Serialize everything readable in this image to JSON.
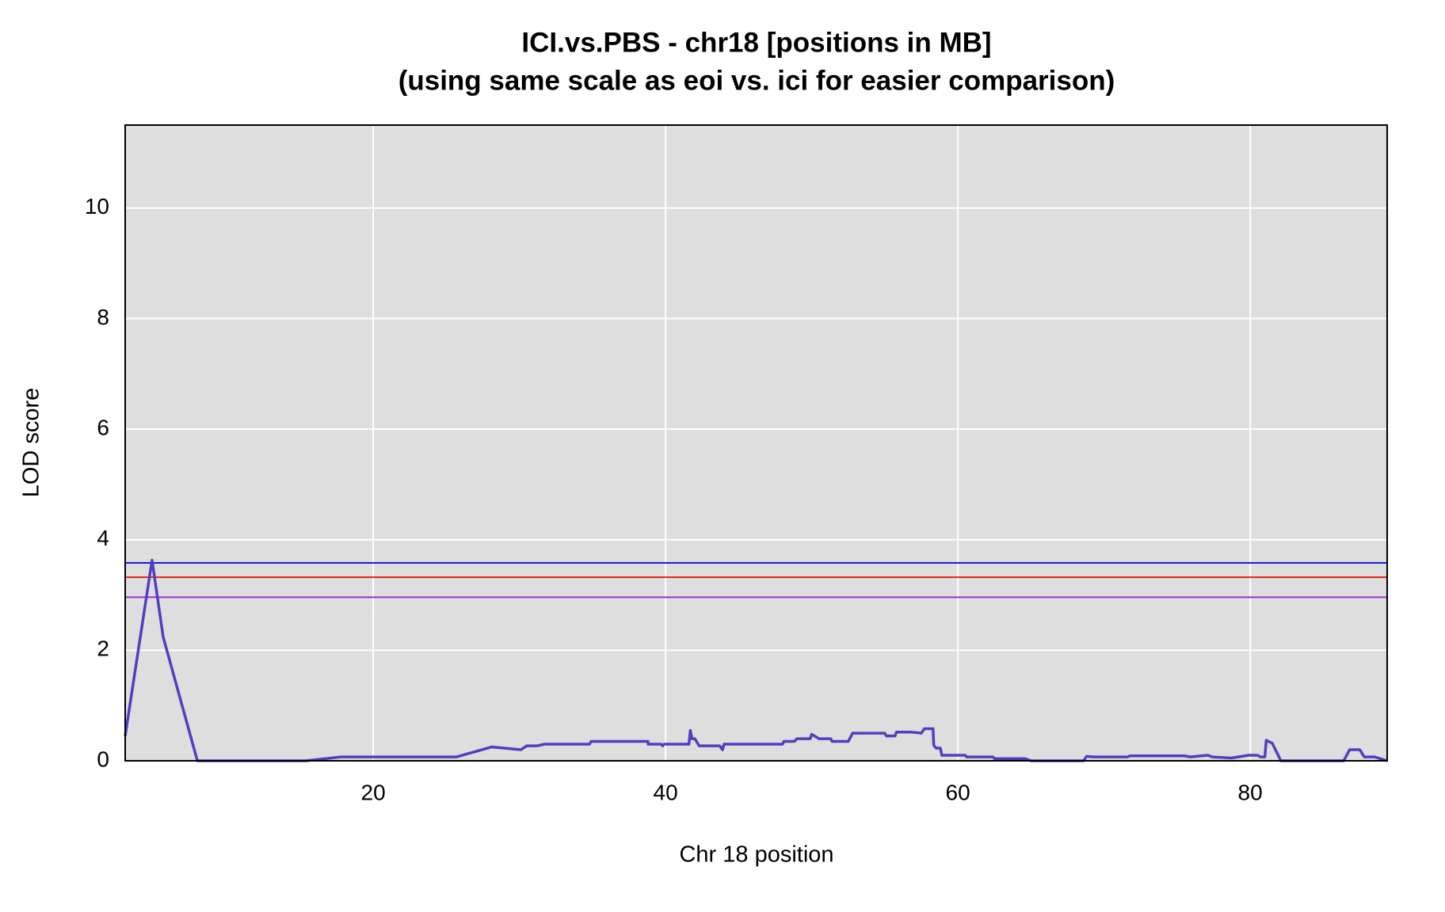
{
  "chart_data": {
    "type": "line",
    "title": [
      "ICI.vs.PBS - chr18 [positions in MB]",
      "(using same scale as eoi vs. ici for easier comparison)"
    ],
    "x_label": "Chr 18 position",
    "y_label": "LOD score",
    "xlim": [
      3.03,
      89.37
    ],
    "ylim": [
      0,
      11.5
    ],
    "xticks": [
      20,
      40,
      60,
      80
    ],
    "yticks": [
      0,
      2,
      4,
      6,
      8,
      10
    ],
    "grid": true,
    "background": "#dedede",
    "x": [
      3.03,
      4.87,
      5.63,
      7.97,
      15.4,
      17.8,
      25.7,
      28.1,
      30.1,
      30.5,
      31.2,
      31.7,
      34.8,
      34.9,
      38.8,
      38.8,
      39.7,
      39.8,
      39.9,
      41.6,
      41.7,
      41.8,
      42.0,
      42.3,
      43.7,
      43.9,
      44.0,
      48.0,
      48.1,
      48.8,
      49.0,
      49.9,
      50.0,
      50.5,
      51.3,
      51.4,
      52.5,
      52.8,
      55.0,
      55.1,
      55.7,
      55.8,
      56.8,
      57.5,
      57.7,
      58.3,
      58.35,
      58.5,
      58.8,
      58.9,
      60.5,
      60.6,
      62.4,
      62.5,
      64.6,
      65.0,
      68.6,
      68.8,
      69.3,
      71.6,
      71.8,
      75.5,
      75.9,
      77.1,
      77.4,
      78.7,
      79.9,
      80.5,
      80.7,
      81.0,
      81.1,
      81.5,
      82.1,
      86.4,
      86.8,
      87.5,
      87.8,
      88.5,
      89.37
    ],
    "series": [
      {
        "color": "#5040c0",
        "values": [
          0.45,
          3.63,
          2.24,
          0,
          0,
          0.07,
          0.07,
          0.25,
          0.2,
          0.27,
          0.27,
          0.3,
          0.3,
          0.35,
          0.35,
          0.3,
          0.3,
          0.27,
          0.3,
          0.3,
          0.55,
          0.4,
          0.4,
          0.27,
          0.27,
          0.2,
          0.3,
          0.3,
          0.35,
          0.35,
          0.4,
          0.4,
          0.48,
          0.4,
          0.4,
          0.35,
          0.35,
          0.5,
          0.5,
          0.45,
          0.45,
          0.52,
          0.52,
          0.5,
          0.58,
          0.58,
          0.28,
          0.23,
          0.23,
          0.1,
          0.1,
          0.07,
          0.07,
          0.04,
          0.04,
          0,
          0,
          0.08,
          0.07,
          0.07,
          0.09,
          0.09,
          0.07,
          0.1,
          0.07,
          0.05,
          0.1,
          0.1,
          0.07,
          0.07,
          0.37,
          0.32,
          0,
          0,
          0.2,
          0.2,
          0.07,
          0.07,
          0
        ]
      }
    ],
    "threshold_lines": [
      {
        "value": 3.58,
        "color": "#1a1adf"
      },
      {
        "value": 3.32,
        "color": "#e0201a"
      },
      {
        "value": 2.96,
        "color": "#9a30d0"
      }
    ]
  }
}
